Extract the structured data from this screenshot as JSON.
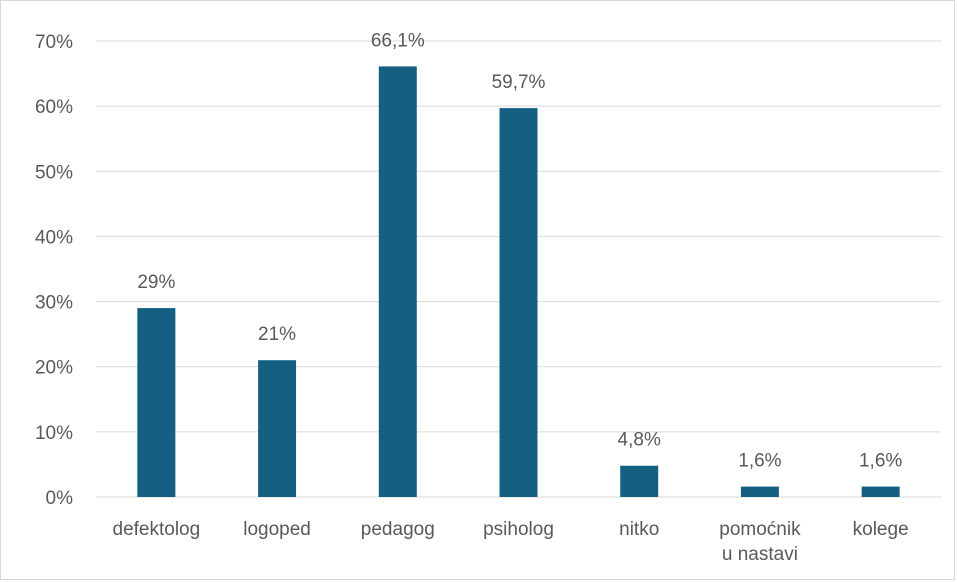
{
  "chart_data": {
    "type": "bar",
    "categories": [
      [
        "defektolog"
      ],
      [
        "logoped"
      ],
      [
        "pedagog"
      ],
      [
        "psiholog"
      ],
      [
        "nitko"
      ],
      [
        "pomoćnik",
        "u nastavi"
      ],
      [
        "kolege"
      ]
    ],
    "values": [
      29,
      21,
      66.1,
      59.7,
      4.8,
      1.6,
      1.6
    ],
    "data_labels": [
      "29%",
      "21%",
      "66,1%",
      "59,7%",
      "4,8%",
      "1,6%",
      "1,6%"
    ],
    "y_ticks": [
      0,
      10,
      20,
      30,
      40,
      50,
      60,
      70
    ],
    "y_tick_labels": [
      "0%",
      "10%",
      "20%",
      "30%",
      "40%",
      "50%",
      "60%",
      "70%"
    ],
    "ylim": [
      0,
      70
    ],
    "grid": true,
    "legend": "none",
    "bar_color": "#156082",
    "grid_color": "#d9d9d9",
    "text_color": "#595959"
  }
}
